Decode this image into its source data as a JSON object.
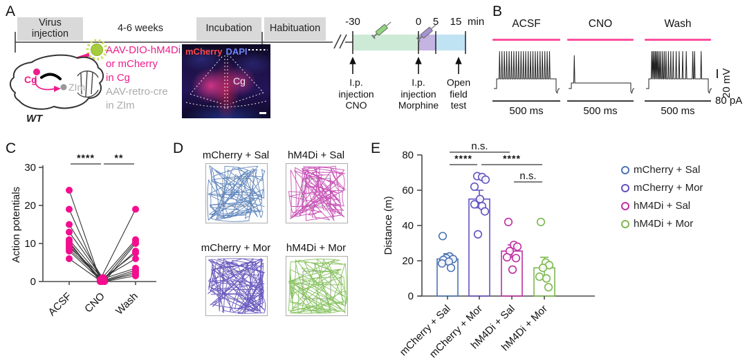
{
  "accent": "#EC1E8C",
  "gray_text": "#ABABAB",
  "panelA": {
    "label": "A",
    "phases": [
      "Virus\ninjection",
      "4-6 weeks",
      "Incubation",
      "Habituation"
    ],
    "time_axis": {
      "ticks": [
        "-30",
        "0",
        "5",
        "15"
      ],
      "unit": "min",
      "segment_colors": [
        "#CDEAD6",
        "#C4B4E1",
        "#BFE3F3"
      ],
      "syringe_colors": [
        "#8FD57C",
        "#A393D0"
      ]
    },
    "events": [
      "I.p.\ninjection\nCNO",
      "I.p.\ninjection\nMorphine",
      "Open\nfield\ntest"
    ],
    "brain": {
      "cg": "Cg",
      "zim": "ZIm",
      "wt": "WT",
      "cg_color": "#EC1E8C",
      "zim_color": "#9e9e9e"
    },
    "injections": {
      "lines": [
        "AAV-DIO-hM4Di",
        "or mCherry",
        "in Cg",
        "AAV-retro-cre",
        "in ZIm"
      ]
    },
    "micrograph": {
      "stain1": "mCherry",
      "stain2": "DAPI",
      "region": "Cg",
      "stain1_color": "#ff4747",
      "stain2_color": "#6f86ff"
    }
  },
  "panelB": {
    "label": "B",
    "stim_color": "#FF4F9E",
    "trace_color": "#222222",
    "conditions": [
      {
        "name": "ACSF",
        "spikes_pct": [
          5,
          9,
          13,
          17,
          21,
          25,
          29,
          33,
          37,
          41,
          45,
          49,
          53,
          57,
          61,
          65,
          69,
          73,
          77,
          81,
          85,
          89
        ]
      },
      {
        "name": "CNO",
        "spikes_pct": [
          5
        ]
      },
      {
        "name": "Wash",
        "spikes_pct": [
          5,
          7,
          9,
          11,
          13,
          15,
          17.5,
          20,
          23,
          26,
          29,
          33,
          37,
          41,
          46,
          51,
          57,
          63,
          74,
          77,
          88
        ]
      }
    ],
    "time_label": "500 ms",
    "voltage_scale": "20 mV",
    "current_label": "80 pA"
  },
  "panelC_label": "C",
  "panelD": {
    "label": "D",
    "groups": [
      {
        "name": "mCherry + Sal",
        "color": "#4F79B6",
        "wall_bias": 0.5,
        "segments": 85
      },
      {
        "name": "hM4Di + Sal",
        "color": "#C23FAE",
        "wall_bias": 0.5,
        "segments": 85
      },
      {
        "name": "mCherry + Mor",
        "color": "#5B4AB8",
        "wall_bias": 0.8,
        "segments": 115
      },
      {
        "name": "hM4Di + Mor",
        "color": "#79BA4C",
        "wall_bias": 0.86,
        "segments": 75
      }
    ]
  },
  "panelE": {
    "label": "E"
  },
  "chart_data": [
    {
      "id": "C",
      "type": "paired-scatter",
      "ylabel": "Action potentials",
      "ylim": [
        0,
        30
      ],
      "yticks": [
        0,
        10,
        20,
        30
      ],
      "categories": [
        "ACSF",
        "CNO",
        "Wash"
      ],
      "point_color": "#F40D8F",
      "line_color": "#333333",
      "pairs": [
        [
          24,
          0.5,
          19
        ],
        [
          19,
          0,
          8
        ],
        [
          15,
          1,
          11
        ],
        [
          13,
          0.5,
          10.5
        ],
        [
          11,
          0,
          10
        ],
        [
          10.5,
          0,
          3
        ],
        [
          10,
          0.5,
          7.5
        ],
        [
          9.5,
          0,
          2.5
        ],
        [
          9,
          1,
          6
        ],
        [
          8.5,
          0,
          1.5
        ],
        [
          8,
          0.5,
          3.5
        ],
        [
          6,
          0,
          2
        ]
      ],
      "significance": [
        {
          "from": 0,
          "to": 1,
          "label": "****"
        },
        {
          "from": 1,
          "to": 2,
          "label": "**"
        }
      ]
    },
    {
      "id": "E",
      "type": "bar-scatter",
      "ylabel": "Distance (m)",
      "ylim": [
        0,
        80
      ],
      "yticks": [
        0,
        20,
        40,
        60,
        80
      ],
      "legend_position": "right",
      "categories": [
        "mCherry + Sal",
        "mCherry + Mor",
        "hM4Di + Sal",
        "hM4Di + Mor"
      ],
      "series": [
        {
          "name": "mCherry + Sal",
          "color": "#4A73B5",
          "mean": 21,
          "sem": 3,
          "points": [
            34,
            22.5,
            21.5,
            21,
            20.5,
            19.5,
            18.5,
            16
          ]
        },
        {
          "name": "mCherry + Mor",
          "color": "#6052C0",
          "mean": 55,
          "sem": 5,
          "points": [
            68,
            67.5,
            66,
            62,
            55,
            52,
            51,
            48,
            35
          ]
        },
        {
          "name": "hM4Di + Sal",
          "color": "#BE2DA2",
          "mean": 25.5,
          "sem": 3.5,
          "points": [
            42,
            29,
            28,
            25.5,
            22,
            21.5,
            15
          ]
        },
        {
          "name": "hM4Di + Mor",
          "color": "#7CB84F",
          "mean": 16,
          "sem": 6,
          "points": [
            42,
            19,
            17.5,
            16,
            11,
            10,
            5
          ]
        }
      ],
      "significance": [
        {
          "from": 0,
          "to": 2,
          "label": "n.s.",
          "level": 3
        },
        {
          "from": 0,
          "to": 1,
          "label": "****",
          "level": 2
        },
        {
          "from": 1,
          "to": 3,
          "label": "****",
          "level": 2
        },
        {
          "from": 2,
          "to": 3,
          "label": "n.s.",
          "level": 1
        }
      ]
    }
  ]
}
